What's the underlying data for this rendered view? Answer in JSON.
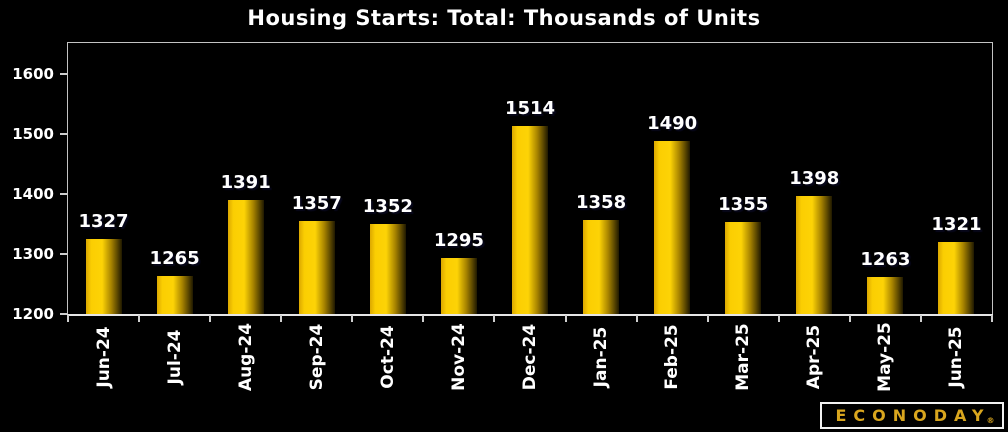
{
  "title": "Housing Starts: Total: Thousands of Units",
  "logo": {
    "brand": "ECONODAY",
    "registered": "®"
  },
  "colors": {
    "background": "#000000",
    "title_text": "#ffffff",
    "axis_text": "#ffffff",
    "plot_border": "#c4c4c4",
    "axis_line": "#e6e6e6",
    "bar_gold_light": "#fdd306",
    "bar_gold_dark": "#201900",
    "logo_gold": "#d9a61e"
  },
  "chart_data": {
    "type": "bar",
    "title": "Housing Starts: Total: Thousands of Units",
    "categories": [
      "Jun-24",
      "Jul-24",
      "Aug-24",
      "Sep-24",
      "Oct-24",
      "Nov-24",
      "Dec-24",
      "Jan-25",
      "Feb-25",
      "Mar-25",
      "Apr-25",
      "May-25",
      "Jun-25"
    ],
    "values": [
      1327,
      1265,
      1391,
      1357,
      1352,
      1295,
      1514,
      1358,
      1490,
      1355,
      1398,
      1263,
      1321
    ],
    "value_labels": true,
    "xlabel": "",
    "ylabel": "",
    "ylim": [
      1200,
      1653
    ],
    "yticks": [
      1200,
      1300,
      1400,
      1500,
      1600
    ],
    "grid": false,
    "legend": false,
    "bar_orientation": "vertical",
    "x_tick_rotation": -90
  }
}
